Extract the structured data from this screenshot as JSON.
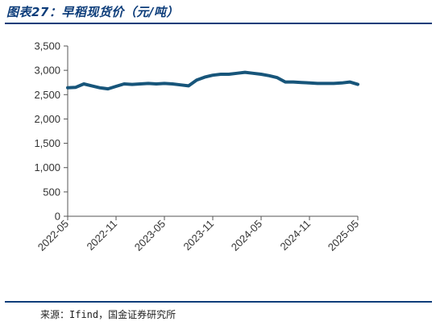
{
  "header": {
    "title": "图表27：早稻现货价（元/吨）"
  },
  "footer": {
    "source": "来源：Ifind，国金证券研究所"
  },
  "chart_data": {
    "type": "line",
    "title": "图表27：早稻现货价（元/吨）",
    "xlabel": "",
    "ylabel": "",
    "ylim": [
      0,
      3500
    ],
    "yticks": [
      0,
      500,
      1000,
      1500,
      2000,
      2500,
      3000,
      3500
    ],
    "ytick_labels": [
      "0",
      "500",
      "1,000",
      "1,500",
      "2,000",
      "2,500",
      "3,000",
      "3,500"
    ],
    "xlim": [
      "2022-05",
      "2025-05"
    ],
    "xtick_labels": [
      "2022-05",
      "2022-11",
      "2023-05",
      "2023-11",
      "2024-05",
      "2024-11",
      "2025-05"
    ],
    "grid": false,
    "series": [
      {
        "color": "#17557a",
        "x": [
          "2022-05",
          "2022-06",
          "2022-07",
          "2022-08",
          "2022-09",
          "2022-10",
          "2022-11",
          "2022-12",
          "2023-01",
          "2023-02",
          "2023-03",
          "2023-04",
          "2023-05",
          "2023-06",
          "2023-07",
          "2023-08",
          "2023-09",
          "2023-10",
          "2023-11",
          "2023-12",
          "2024-01",
          "2024-02",
          "2024-03",
          "2024-04",
          "2024-05",
          "2024-06",
          "2024-07",
          "2024-08",
          "2024-09",
          "2024-10",
          "2024-11",
          "2024-12",
          "2025-01",
          "2025-02",
          "2025-03",
          "2025-04",
          "2025-05"
        ],
        "values": [
          2640,
          2650,
          2720,
          2680,
          2640,
          2620,
          2670,
          2720,
          2710,
          2720,
          2730,
          2720,
          2730,
          2720,
          2700,
          2680,
          2800,
          2860,
          2900,
          2920,
          2920,
          2940,
          2960,
          2940,
          2920,
          2890,
          2850,
          2760,
          2760,
          2750,
          2740,
          2730,
          2730,
          2730,
          2740,
          2760,
          2710
        ]
      }
    ]
  }
}
